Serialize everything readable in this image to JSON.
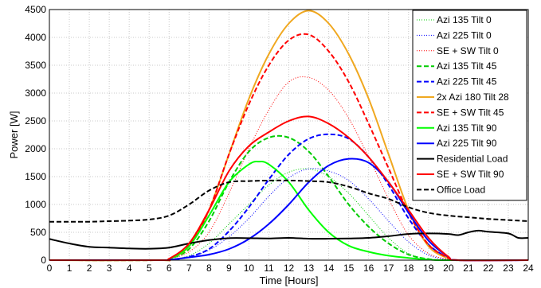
{
  "chart_data": {
    "type": "line",
    "xlabel": "Time [Hours]",
    "ylabel": "Power [W]",
    "xlim": [
      0,
      24
    ],
    "ylim": [
      0,
      4500
    ],
    "x_ticks": [
      0,
      1,
      2,
      3,
      4,
      5,
      6,
      7,
      8,
      9,
      10,
      11,
      12,
      13,
      14,
      15,
      16,
      17,
      18,
      19,
      20,
      21,
      22,
      23,
      24
    ],
    "y_ticks": [
      0,
      500,
      1000,
      1500,
      2000,
      2500,
      3000,
      3500,
      4000,
      4500
    ],
    "grid": true,
    "legend_position": "top-right",
    "series": [
      {
        "name": "Azi 135 Tilt 0",
        "color": "#00cc00",
        "style": "dotted",
        "points": [
          [
            0,
            0
          ],
          [
            5.5,
            0
          ],
          [
            6,
            10
          ],
          [
            7,
            80
          ],
          [
            8,
            300
          ],
          [
            9,
            650
          ],
          [
            10,
            1000
          ],
          [
            11,
            1350
          ],
          [
            12,
            1580
          ],
          [
            13,
            1640
          ],
          [
            14,
            1500
          ],
          [
            15,
            1200
          ],
          [
            16,
            800
          ],
          [
            17,
            400
          ],
          [
            18,
            120
          ],
          [
            19,
            20
          ],
          [
            20,
            0
          ],
          [
            24,
            0
          ]
        ]
      },
      {
        "name": "Azi 225 Tilt 0",
        "color": "#0000ff",
        "style": "dotted",
        "points": [
          [
            0,
            0
          ],
          [
            5.5,
            0
          ],
          [
            6,
            5
          ],
          [
            7,
            60
          ],
          [
            8,
            180
          ],
          [
            9,
            420
          ],
          [
            10,
            750
          ],
          [
            11,
            1150
          ],
          [
            12,
            1480
          ],
          [
            13,
            1640
          ],
          [
            14,
            1600
          ],
          [
            15,
            1430
          ],
          [
            16,
            1100
          ],
          [
            17,
            700
          ],
          [
            18,
            330
          ],
          [
            19,
            90
          ],
          [
            20,
            10
          ],
          [
            20.5,
            0
          ],
          [
            24,
            0
          ]
        ]
      },
      {
        "name": "SE + SW Tilt 0",
        "color": "#ff0000",
        "style": "dotted",
        "points": [
          [
            0,
            0
          ],
          [
            5.5,
            0
          ],
          [
            6,
            20
          ],
          [
            7,
            150
          ],
          [
            8,
            500
          ],
          [
            9,
            1200
          ],
          [
            10,
            2000
          ],
          [
            11,
            2700
          ],
          [
            12,
            3200
          ],
          [
            13,
            3280
          ],
          [
            14,
            3050
          ],
          [
            15,
            2550
          ],
          [
            16,
            1850
          ],
          [
            17,
            1100
          ],
          [
            18,
            450
          ],
          [
            19,
            120
          ],
          [
            20,
            15
          ],
          [
            20.5,
            0
          ],
          [
            24,
            0
          ]
        ]
      },
      {
        "name": "Azi 135 Tilt 45",
        "color": "#00cc00",
        "style": "dashed",
        "points": [
          [
            0,
            0
          ],
          [
            5.5,
            0
          ],
          [
            6,
            20
          ],
          [
            7,
            200
          ],
          [
            8,
            700
          ],
          [
            9,
            1400
          ],
          [
            10,
            1950
          ],
          [
            11,
            2200
          ],
          [
            12,
            2200
          ],
          [
            13,
            1950
          ],
          [
            14,
            1500
          ],
          [
            15,
            1000
          ],
          [
            16,
            600
          ],
          [
            17,
            300
          ],
          [
            18,
            100
          ],
          [
            19,
            20
          ],
          [
            20,
            0
          ],
          [
            24,
            0
          ]
        ]
      },
      {
        "name": "Azi 225 Tilt 45",
        "color": "#0000ff",
        "style": "dashed",
        "points": [
          [
            0,
            0
          ],
          [
            5.5,
            0
          ],
          [
            6,
            5
          ],
          [
            7,
            60
          ],
          [
            8,
            200
          ],
          [
            9,
            520
          ],
          [
            10,
            950
          ],
          [
            11,
            1450
          ],
          [
            12,
            1900
          ],
          [
            13,
            2180
          ],
          [
            14,
            2260
          ],
          [
            15,
            2180
          ],
          [
            16,
            1850
          ],
          [
            17,
            1350
          ],
          [
            18,
            750
          ],
          [
            19,
            280
          ],
          [
            20,
            40
          ],
          [
            20.5,
            0
          ],
          [
            24,
            0
          ]
        ]
      },
      {
        "name": "2x Azi 180 Tilt 28",
        "color": "#f0a820",
        "style": "solid",
        "points": [
          [
            0,
            0
          ],
          [
            5.5,
            0
          ],
          [
            6,
            20
          ],
          [
            7,
            250
          ],
          [
            8,
            900
          ],
          [
            9,
            1900
          ],
          [
            10,
            2900
          ],
          [
            11,
            3700
          ],
          [
            12,
            4250
          ],
          [
            13,
            4480
          ],
          [
            14,
            4250
          ],
          [
            15,
            3700
          ],
          [
            16,
            2900
          ],
          [
            17,
            1900
          ],
          [
            18,
            900
          ],
          [
            19,
            250
          ],
          [
            20,
            30
          ],
          [
            20.5,
            0
          ],
          [
            24,
            0
          ]
        ]
      },
      {
        "name": "SE + SW Tilt 45",
        "color": "#ff0000",
        "style": "dashed",
        "points": [
          [
            0,
            0
          ],
          [
            5.5,
            0
          ],
          [
            6,
            25
          ],
          [
            7,
            260
          ],
          [
            8,
            900
          ],
          [
            9,
            1900
          ],
          [
            10,
            2800
          ],
          [
            11,
            3500
          ],
          [
            12,
            3950
          ],
          [
            13,
            4050
          ],
          [
            14,
            3750
          ],
          [
            15,
            3200
          ],
          [
            16,
            2450
          ],
          [
            17,
            1650
          ],
          [
            18,
            850
          ],
          [
            19,
            280
          ],
          [
            20,
            40
          ],
          [
            20.5,
            0
          ],
          [
            24,
            0
          ]
        ]
      },
      {
        "name": "Azi 135 Tilt 90",
        "color": "#00ff00",
        "style": "solid",
        "points": [
          [
            0,
            0
          ],
          [
            5.5,
            0
          ],
          [
            6,
            20
          ],
          [
            7,
            250
          ],
          [
            8,
            800
          ],
          [
            9,
            1400
          ],
          [
            10,
            1720
          ],
          [
            10.5,
            1770
          ],
          [
            11,
            1720
          ],
          [
            12,
            1400
          ],
          [
            13,
            900
          ],
          [
            14,
            500
          ],
          [
            15,
            260
          ],
          [
            16,
            150
          ],
          [
            17,
            80
          ],
          [
            18,
            40
          ],
          [
            19,
            10
          ],
          [
            20,
            0
          ],
          [
            24,
            0
          ]
        ]
      },
      {
        "name": "Azi 225 Tilt 90",
        "color": "#0000ff",
        "style": "solid",
        "points": [
          [
            0,
            0
          ],
          [
            5.5,
            0
          ],
          [
            6,
            5
          ],
          [
            7,
            50
          ],
          [
            8,
            100
          ],
          [
            9,
            200
          ],
          [
            10,
            380
          ],
          [
            11,
            650
          ],
          [
            12,
            1000
          ],
          [
            13,
            1400
          ],
          [
            14,
            1700
          ],
          [
            15,
            1820
          ],
          [
            16,
            1750
          ],
          [
            17,
            1400
          ],
          [
            18,
            850
          ],
          [
            19,
            350
          ],
          [
            20,
            60
          ],
          [
            20.5,
            0
          ],
          [
            24,
            0
          ]
        ]
      },
      {
        "name": "Residential Load",
        "color": "#000000",
        "style": "solid",
        "points": [
          [
            0,
            380
          ],
          [
            1,
            300
          ],
          [
            2,
            240
          ],
          [
            3,
            225
          ],
          [
            4,
            210
          ],
          [
            5,
            205
          ],
          [
            6,
            225
          ],
          [
            7,
            300
          ],
          [
            8,
            360
          ],
          [
            9,
            395
          ],
          [
            10,
            395
          ],
          [
            11,
            390
          ],
          [
            12,
            400
          ],
          [
            13,
            385
          ],
          [
            14,
            385
          ],
          [
            15,
            390
          ],
          [
            16,
            400
          ],
          [
            17,
            430
          ],
          [
            18,
            470
          ],
          [
            19,
            480
          ],
          [
            20,
            470
          ],
          [
            20.5,
            450
          ],
          [
            21,
            500
          ],
          [
            21.5,
            530
          ],
          [
            22,
            510
          ],
          [
            23,
            480
          ],
          [
            23.5,
            400
          ],
          [
            24,
            400
          ]
        ]
      },
      {
        "name": "SE + SW Tilt 90",
        "color": "#ff0000",
        "style": "solid",
        "points": [
          [
            0,
            0
          ],
          [
            5.5,
            0
          ],
          [
            6,
            25
          ],
          [
            7,
            300
          ],
          [
            8,
            900
          ],
          [
            9,
            1600
          ],
          [
            10,
            2050
          ],
          [
            11,
            2300
          ],
          [
            12,
            2500
          ],
          [
            13,
            2580
          ],
          [
            14,
            2450
          ],
          [
            15,
            2200
          ],
          [
            16,
            1850
          ],
          [
            17,
            1400
          ],
          [
            18,
            900
          ],
          [
            19,
            400
          ],
          [
            20,
            60
          ],
          [
            20.5,
            0
          ],
          [
            24,
            0
          ]
        ]
      },
      {
        "name": "Office Load",
        "color": "#000000",
        "style": "dashed",
        "points": [
          [
            0,
            690
          ],
          [
            1,
            690
          ],
          [
            2,
            690
          ],
          [
            3,
            700
          ],
          [
            4,
            710
          ],
          [
            5,
            730
          ],
          [
            6,
            800
          ],
          [
            7,
            1000
          ],
          [
            8,
            1250
          ],
          [
            9,
            1400
          ],
          [
            10,
            1420
          ],
          [
            11,
            1430
          ],
          [
            12,
            1430
          ],
          [
            13,
            1420
          ],
          [
            14,
            1400
          ],
          [
            15,
            1320
          ],
          [
            16,
            1200
          ],
          [
            17,
            1100
          ],
          [
            18,
            950
          ],
          [
            19,
            850
          ],
          [
            20,
            800
          ],
          [
            21,
            770
          ],
          [
            22,
            740
          ],
          [
            23,
            720
          ],
          [
            24,
            700
          ]
        ]
      }
    ]
  }
}
